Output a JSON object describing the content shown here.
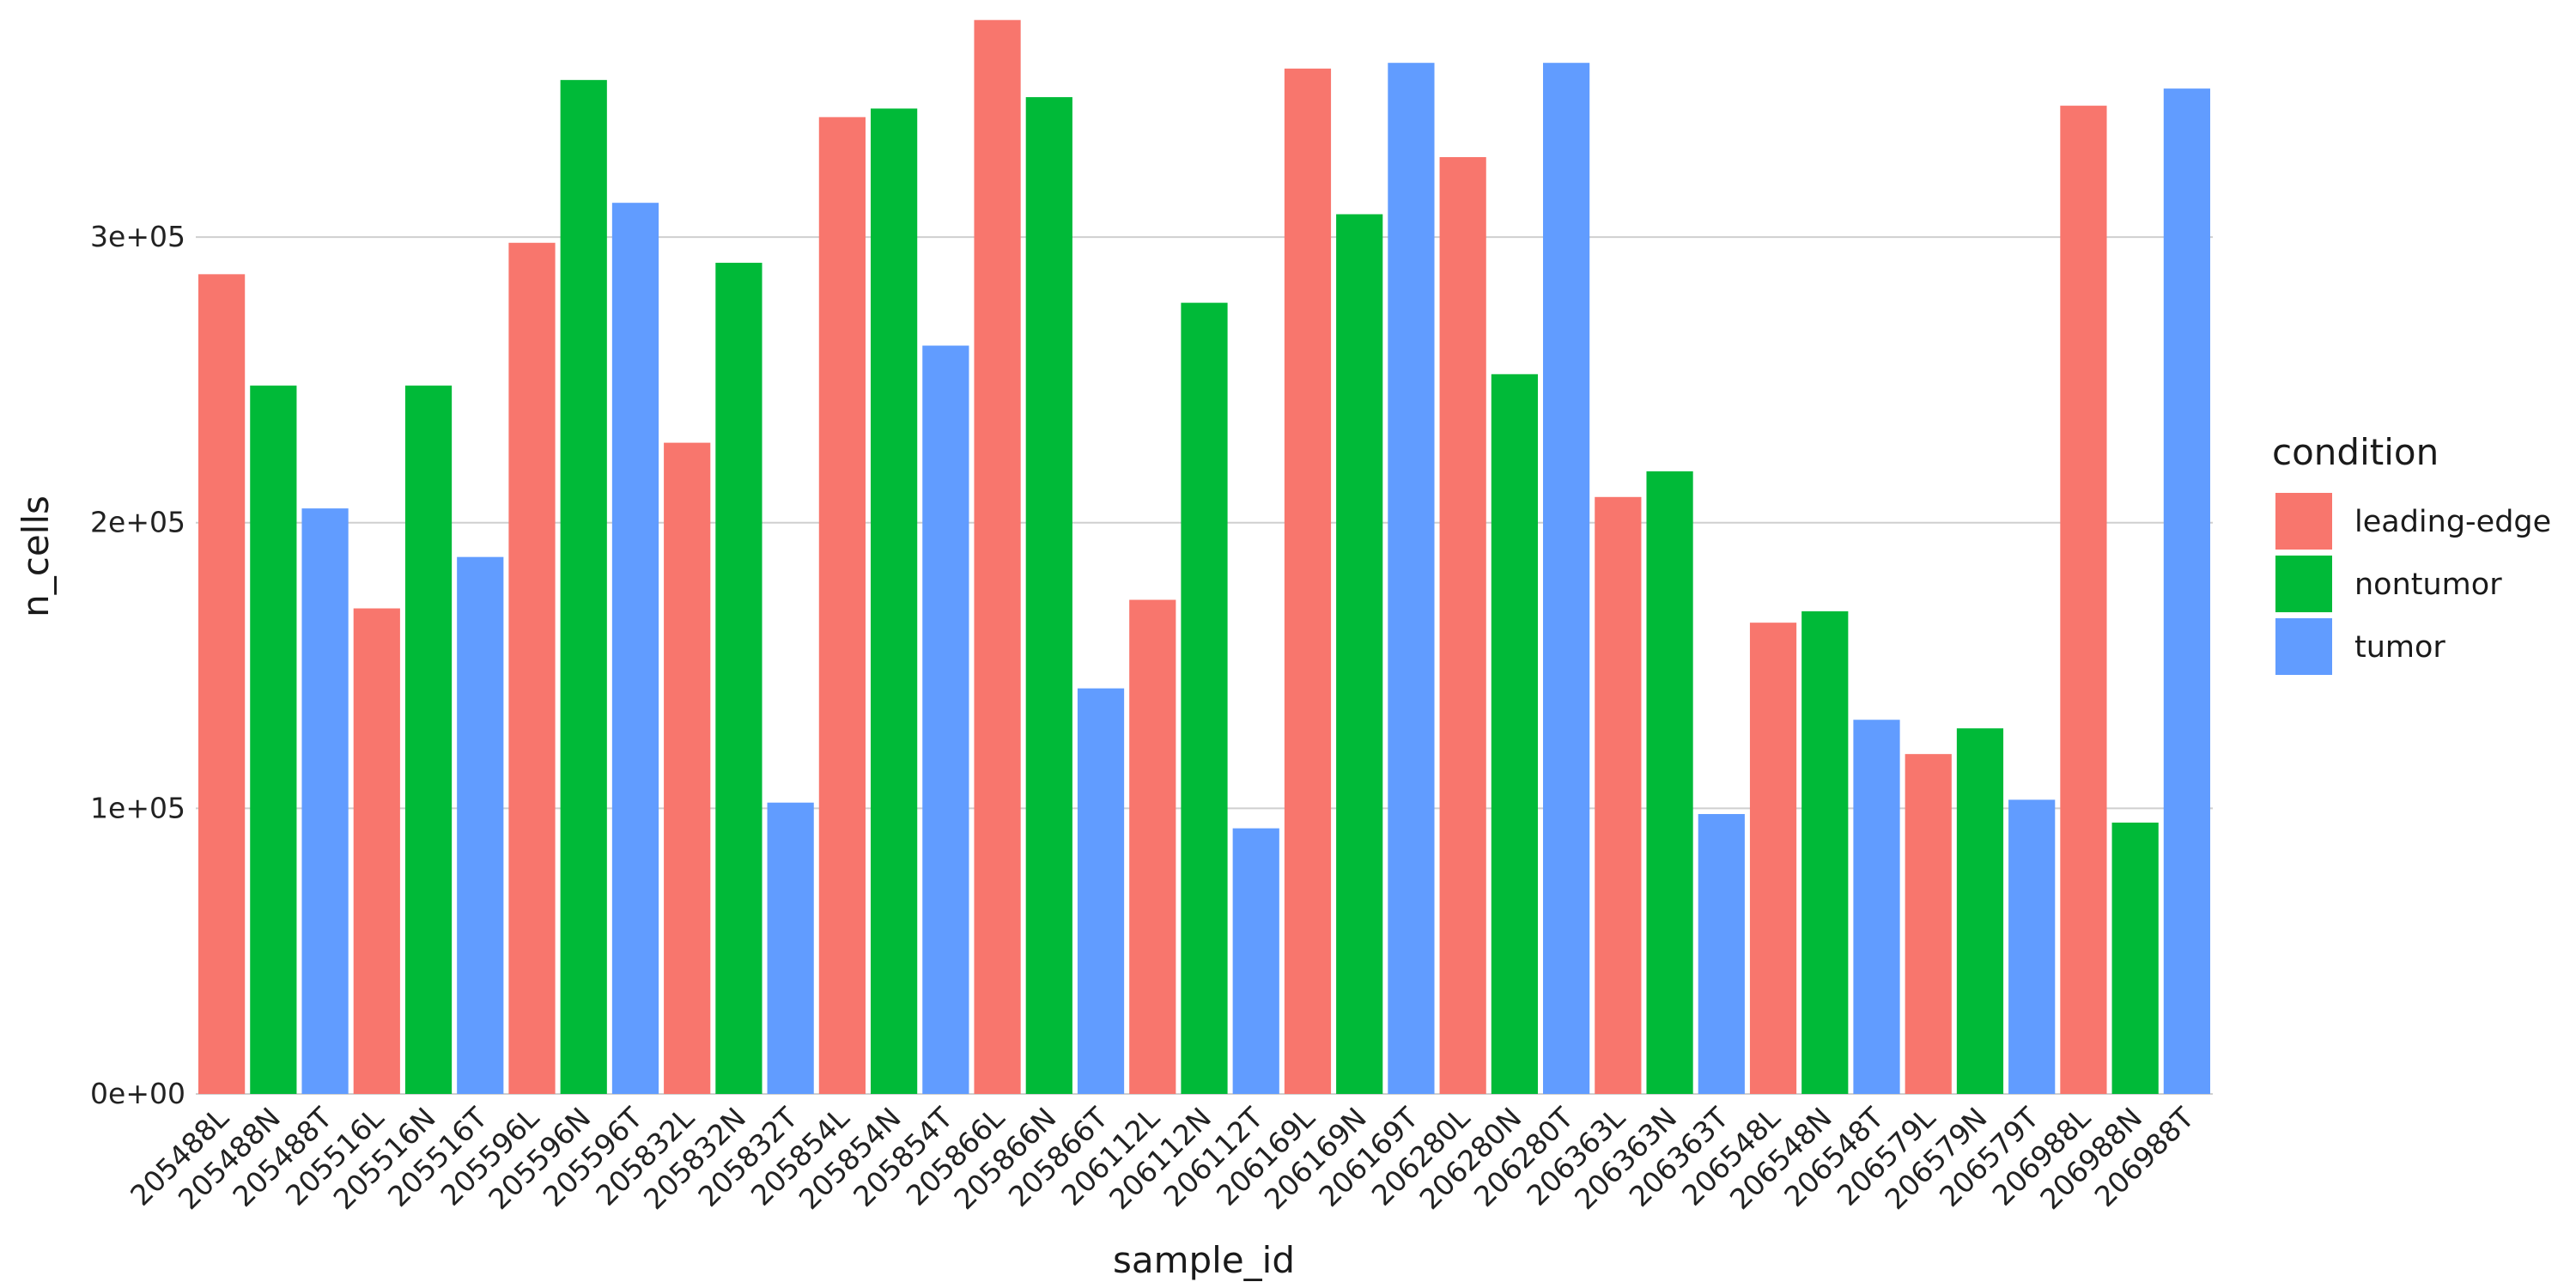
{
  "chart_data": {
    "type": "bar",
    "x_label": "sample_id",
    "y_label": "n_cells",
    "legend_title": "condition",
    "legend": "right",
    "grid": true,
    "categories": [
      "205488L",
      "205488N",
      "205488T",
      "205516L",
      "205516N",
      "205516T",
      "205596L",
      "205596N",
      "205596T",
      "205832L",
      "205832N",
      "205832T",
      "205854L",
      "205854N",
      "205854T",
      "205866L",
      "205866N",
      "205866T",
      "206112L",
      "206112N",
      "206112T",
      "206169L",
      "206169N",
      "206169T",
      "206280L",
      "206280N",
      "206280T",
      "206363L",
      "206363N",
      "206363T",
      "206548L",
      "206548N",
      "206548T",
      "206579L",
      "206579N",
      "206579T",
      "206988L",
      "206988N",
      "206988T"
    ],
    "series": [
      {
        "name": "leading-edge",
        "color": "#F8766D",
        "values": [
          287000,
          null,
          null,
          170000,
          null,
          null,
          298000,
          null,
          null,
          228000,
          null,
          null,
          342000,
          null,
          null,
          376000,
          null,
          null,
          173000,
          null,
          null,
          359000,
          null,
          null,
          328000,
          null,
          null,
          209000,
          null,
          null,
          165000,
          null,
          null,
          119000,
          null,
          null,
          346000,
          null,
          null
        ]
      },
      {
        "name": "nontumor",
        "color": "#00BA38",
        "values": [
          null,
          248000,
          null,
          null,
          248000,
          null,
          null,
          355000,
          null,
          null,
          291000,
          null,
          null,
          345000,
          null,
          null,
          349000,
          null,
          null,
          277000,
          null,
          null,
          308000,
          null,
          null,
          252000,
          null,
          null,
          218000,
          null,
          null,
          169000,
          null,
          null,
          128000,
          null,
          null,
          95000,
          null
        ]
      },
      {
        "name": "tumor",
        "color": "#619CFF",
        "values": [
          null,
          null,
          205000,
          null,
          null,
          188000,
          null,
          null,
          312000,
          null,
          null,
          102000,
          null,
          null,
          262000,
          null,
          null,
          142000,
          null,
          null,
          93000,
          null,
          null,
          361000,
          null,
          null,
          361000,
          null,
          null,
          98000,
          null,
          null,
          131000,
          null,
          null,
          103000,
          null,
          null,
          352000
        ]
      }
    ],
    "ylim": [
      0,
      380000
    ],
    "yticks": [
      {
        "value": 0,
        "label": "0e+00"
      },
      {
        "value": 100000,
        "label": "1e+05"
      },
      {
        "value": 200000,
        "label": "2e+05"
      },
      {
        "value": 300000,
        "label": "3e+05"
      }
    ]
  }
}
